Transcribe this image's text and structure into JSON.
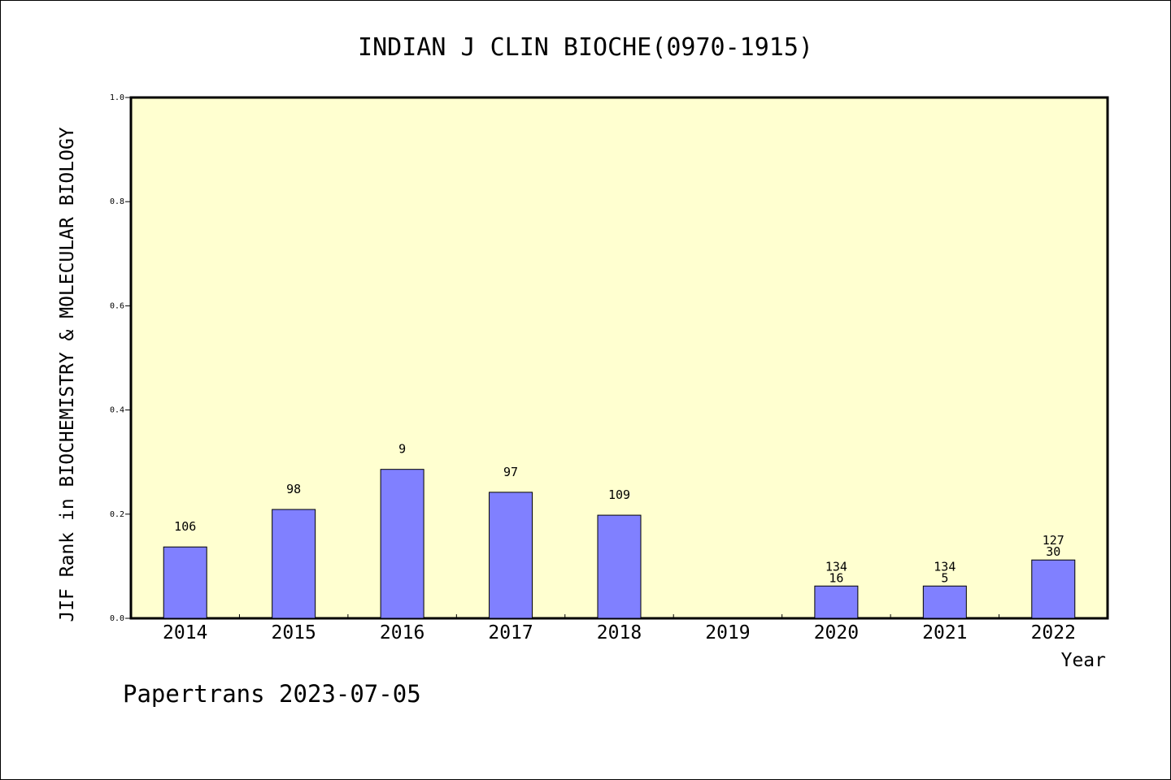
{
  "chart_data": {
    "type": "bar",
    "title": "INDIAN J CLIN BIOCHE(0970-1915)",
    "xlabel": "Year",
    "ylabel": "JIF Rank in BIOCHEMISTRY & MOLECULAR BIOLOGY",
    "ylim": [
      0,
      1.0
    ],
    "yticks": [
      "0.0",
      "0.2",
      "0.4",
      "0.6",
      "0.8",
      "1.0"
    ],
    "categories": [
      "2014",
      "2015",
      "2016",
      "2017",
      "2018",
      "2019",
      "2020",
      "2021",
      "2022"
    ],
    "values": [
      0.137,
      0.209,
      0.286,
      0.242,
      0.198,
      null,
      0.062,
      0.062,
      0.112
    ],
    "bar_labels": [
      [
        "106"
      ],
      [
        "98"
      ],
      [
        "9"
      ],
      [
        "97"
      ],
      [
        "109"
      ],
      [],
      [
        "134",
        "16"
      ],
      [
        "134",
        "5"
      ],
      [
        "127",
        "30"
      ]
    ],
    "colors": {
      "plot_background": "#ffffd0",
      "bar_fill": "#8080ff",
      "bar_stroke": "#000000"
    },
    "grid": false,
    "legend": "none"
  },
  "footer": {
    "text": "Papertrans 2023-07-05"
  }
}
